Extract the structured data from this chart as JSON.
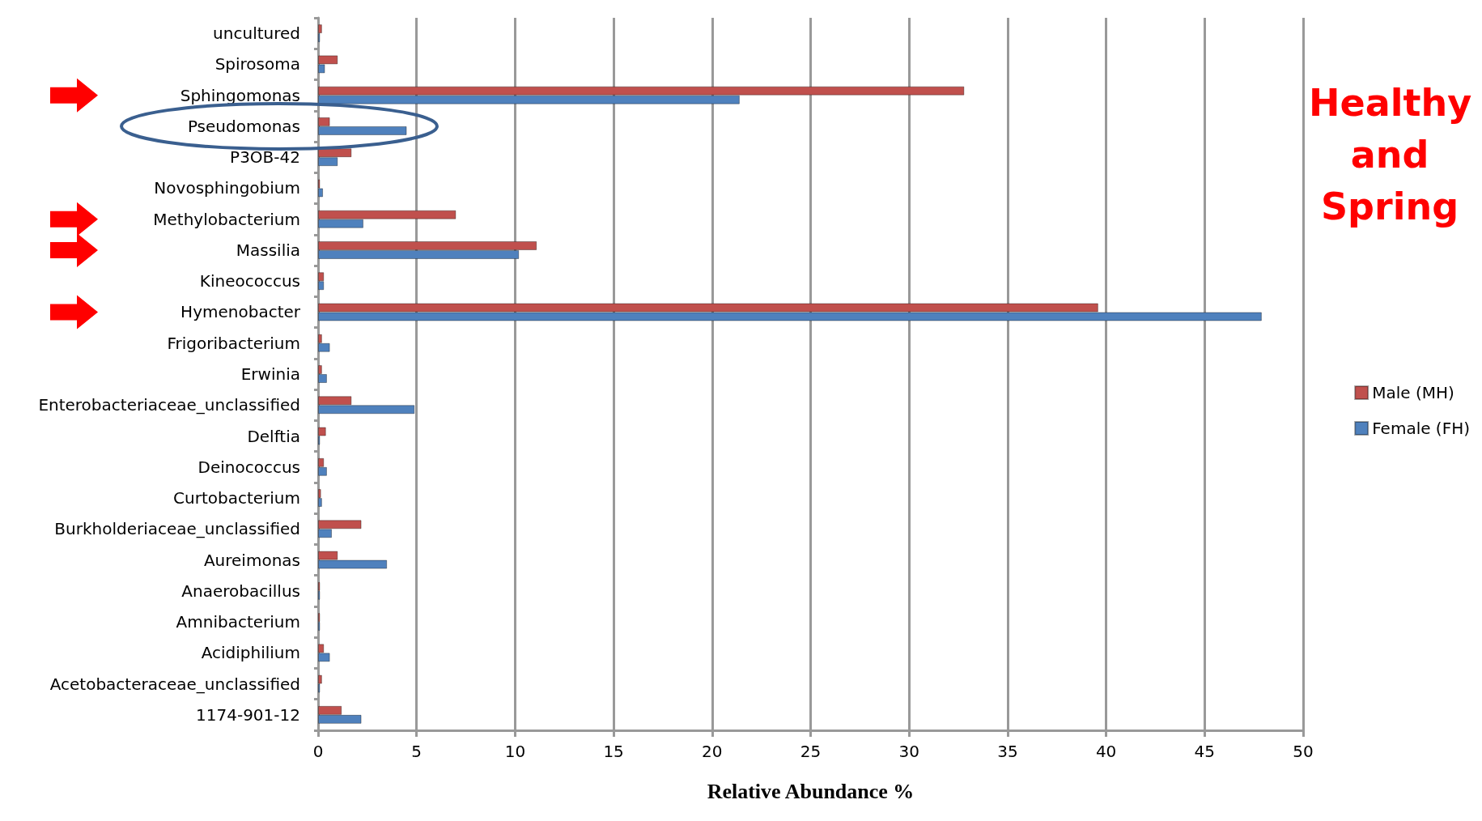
{
  "chart_data": {
    "type": "bar",
    "orientation": "horizontal",
    "xlabel": "Relative Abundance %",
    "annotations": [
      "Healthy and Spring"
    ],
    "categories": [
      "uncultured",
      "Spirosoma",
      "Sphingomonas",
      "Pseudomonas",
      "P3OB-42",
      "Novosphingobium",
      "Methylobacterium",
      "Massilia",
      "Kineococcus",
      "Hymenobacter",
      "Frigoribacterium",
      "Erwinia",
      "Enterobacteriaceae_unclassified",
      "Delftia",
      "Deinococcus",
      "Curtobacterium",
      "Burkholderiaceae_unclassified",
      "Aureimonas",
      "Anaerobacillus",
      "Amnibacterium",
      "Acidiphilium",
      "Acetobacteraceae_unclassified",
      "1174-901-12"
    ],
    "series": [
      {
        "name": "Male (MH)",
        "color": "#c0504d",
        "values": [
          0.2,
          1.0,
          32.8,
          0.6,
          1.7,
          0.1,
          7.0,
          11.1,
          0.3,
          39.6,
          0.2,
          0.2,
          1.7,
          0.4,
          0.3,
          0.15,
          2.2,
          1.0,
          0.1,
          0.1,
          0.3,
          0.2,
          1.2
        ]
      },
      {
        "name": "Female (FH)",
        "color": "#4f81bd",
        "values": [
          0.1,
          0.35,
          21.4,
          4.5,
          1.0,
          0.25,
          2.3,
          10.2,
          0.3,
          47.9,
          0.6,
          0.45,
          4.9,
          0.1,
          0.45,
          0.2,
          0.7,
          3.5,
          0.1,
          0.1,
          0.6,
          0.1,
          2.2
        ]
      }
    ],
    "xlim": [
      0,
      50
    ],
    "xticks": [
      0,
      5,
      10,
      15,
      20,
      25,
      30,
      35,
      40,
      45,
      50
    ],
    "grid": "x",
    "legend": "right"
  }
}
